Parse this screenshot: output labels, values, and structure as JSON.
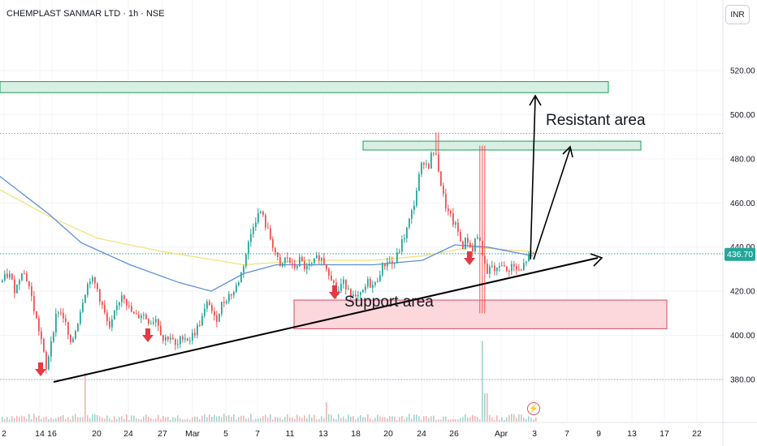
{
  "header": {
    "title": "CHEMPLAST SANMAR LTD · 1h · NSE",
    "currency": "INR"
  },
  "colors": {
    "up": "#26a69a",
    "down": "#ef5350",
    "ma_blue": "#5b8fd9",
    "ma_yellow": "#f0e27a",
    "resistance_fill": "#d7f0e3",
    "resistance_stroke": "#1b9e5a",
    "support_fill": "#fcd7dc",
    "support_stroke": "#d14f66",
    "current_price_tag": "#26a69a",
    "arrow_marker": "#e53945"
  },
  "chart_data": {
    "type": "candlestick",
    "price_axis": {
      "ticks": [
        "520.00",
        "500.00",
        "480.00",
        "460.00",
        "440.00",
        "420.00",
        "400.00",
        "380.00"
      ],
      "current_price": "436.70",
      "range": [
        362,
        546
      ]
    },
    "time_axis": {
      "labels": [
        "2",
        "14",
        "16",
        "20",
        "24",
        "27",
        "Mar",
        "5",
        "7",
        "11",
        "13",
        "18",
        "20",
        "24",
        "26",
        "Apr",
        "3",
        "7",
        "9",
        "13",
        "17",
        "22"
      ]
    },
    "annotations": {
      "resistance_label": "Resistant area",
      "support_label": "Support area",
      "resistance_zone_upper": [
        510,
        515
      ],
      "resistance_zone_lower": [
        484,
        488
      ],
      "support_zone": [
        403,
        416
      ],
      "dotted_levels": [
        491.5,
        437,
        380
      ]
    },
    "price_path": [
      {
        "t": 0,
        "p": 424
      },
      {
        "t": 10,
        "p": 428
      },
      {
        "t": 18,
        "p": 420
      },
      {
        "t": 26,
        "p": 430
      },
      {
        "t": 34,
        "p": 424
      },
      {
        "t": 42,
        "p": 410
      },
      {
        "t": 50,
        "p": 398
      },
      {
        "t": 56,
        "p": 384
      },
      {
        "t": 62,
        "p": 398
      },
      {
        "t": 70,
        "p": 412
      },
      {
        "t": 78,
        "p": 408
      },
      {
        "t": 86,
        "p": 395
      },
      {
        "t": 94,
        "p": 405
      },
      {
        "t": 102,
        "p": 418
      },
      {
        "t": 110,
        "p": 426
      },
      {
        "t": 118,
        "p": 422
      },
      {
        "t": 126,
        "p": 412
      },
      {
        "t": 134,
        "p": 402
      },
      {
        "t": 142,
        "p": 412
      },
      {
        "t": 150,
        "p": 420
      },
      {
        "t": 158,
        "p": 412
      },
      {
        "t": 166,
        "p": 408
      },
      {
        "t": 174,
        "p": 410
      },
      {
        "t": 184,
        "p": 406
      },
      {
        "t": 192,
        "p": 408
      },
      {
        "t": 200,
        "p": 398
      },
      {
        "t": 208,
        "p": 400
      },
      {
        "t": 216,
        "p": 394
      },
      {
        "t": 224,
        "p": 400
      },
      {
        "t": 232,
        "p": 398
      },
      {
        "t": 240,
        "p": 402
      },
      {
        "t": 248,
        "p": 408
      },
      {
        "t": 256,
        "p": 416
      },
      {
        "t": 264,
        "p": 406
      },
      {
        "t": 272,
        "p": 414
      },
      {
        "t": 280,
        "p": 418
      },
      {
        "t": 288,
        "p": 420
      },
      {
        "t": 296,
        "p": 428
      },
      {
        "t": 304,
        "p": 440
      },
      {
        "t": 312,
        "p": 452
      },
      {
        "t": 320,
        "p": 456
      },
      {
        "t": 328,
        "p": 448
      },
      {
        "t": 336,
        "p": 440
      },
      {
        "t": 344,
        "p": 430
      },
      {
        "t": 352,
        "p": 436
      },
      {
        "t": 360,
        "p": 430
      },
      {
        "t": 368,
        "p": 434
      },
      {
        "t": 376,
        "p": 430
      },
      {
        "t": 384,
        "p": 432
      },
      {
        "t": 392,
        "p": 436
      },
      {
        "t": 400,
        "p": 432
      },
      {
        "t": 408,
        "p": 426
      },
      {
        "t": 414,
        "p": 418
      },
      {
        "t": 420,
        "p": 424
      },
      {
        "t": 428,
        "p": 422
      },
      {
        "t": 436,
        "p": 416
      },
      {
        "t": 444,
        "p": 418
      },
      {
        "t": 452,
        "p": 424
      },
      {
        "t": 460,
        "p": 422
      },
      {
        "t": 468,
        "p": 430
      },
      {
        "t": 476,
        "p": 434
      },
      {
        "t": 484,
        "p": 432
      },
      {
        "t": 492,
        "p": 440
      },
      {
        "t": 500,
        "p": 448
      },
      {
        "t": 508,
        "p": 458
      },
      {
        "t": 514,
        "p": 470
      },
      {
        "t": 520,
        "p": 480
      },
      {
        "t": 526,
        "p": 476
      },
      {
        "t": 532,
        "p": 484
      },
      {
        "t": 538,
        "p": 478
      },
      {
        "t": 544,
        "p": 464
      },
      {
        "t": 550,
        "p": 456
      },
      {
        "t": 556,
        "p": 452
      },
      {
        "t": 562,
        "p": 448
      },
      {
        "t": 568,
        "p": 440
      },
      {
        "t": 574,
        "p": 444
      },
      {
        "t": 580,
        "p": 438
      },
      {
        "t": 586,
        "p": 446
      },
      {
        "t": 592,
        "p": 440
      },
      {
        "t": 598,
        "p": 426
      },
      {
        "t": 604,
        "p": 432
      },
      {
        "t": 610,
        "p": 428
      },
      {
        "t": 616,
        "p": 434
      },
      {
        "t": 622,
        "p": 428
      },
      {
        "t": 628,
        "p": 432
      },
      {
        "t": 634,
        "p": 430
      },
      {
        "t": 640,
        "p": 428
      },
      {
        "t": 646,
        "p": 434
      },
      {
        "t": 652,
        "p": 436
      },
      {
        "t": 656,
        "p": 436.7
      }
    ],
    "ma_blue": [
      {
        "t": 0,
        "p": 472
      },
      {
        "t": 60,
        "p": 455
      },
      {
        "t": 100,
        "p": 442
      },
      {
        "t": 160,
        "p": 432
      },
      {
        "t": 220,
        "p": 424
      },
      {
        "t": 260,
        "p": 420
      },
      {
        "t": 300,
        "p": 428
      },
      {
        "t": 340,
        "p": 432
      },
      {
        "t": 400,
        "p": 432
      },
      {
        "t": 460,
        "p": 432
      },
      {
        "t": 520,
        "p": 434
      },
      {
        "t": 560,
        "p": 441
      },
      {
        "t": 600,
        "p": 440
      },
      {
        "t": 656,
        "p": 436
      }
    ],
    "ma_yellow": [
      {
        "t": 0,
        "p": 466
      },
      {
        "t": 60,
        "p": 454
      },
      {
        "t": 120,
        "p": 444
      },
      {
        "t": 200,
        "p": 438
      },
      {
        "t": 300,
        "p": 432
      },
      {
        "t": 380,
        "p": 434
      },
      {
        "t": 460,
        "p": 434
      },
      {
        "t": 520,
        "p": 436
      },
      {
        "t": 580,
        "p": 440
      },
      {
        "t": 656,
        "p": 438
      }
    ]
  }
}
